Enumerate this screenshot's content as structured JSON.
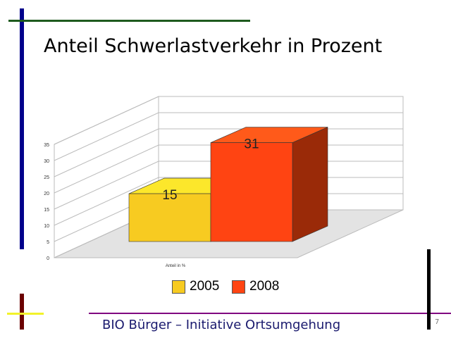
{
  "slide": {
    "title": "Anteil Schwerlastverkehr in Prozent",
    "footer": "BIO Bürger – Initiative Ortsumgehung",
    "page_number": "7"
  },
  "colors": {
    "s2005_front": "#f7cb21",
    "s2005_top": "#fce72b",
    "s2005_side": "#c89a10",
    "s2008_front": "#ff4412",
    "s2008_top": "#ff5a1a",
    "s2008_side": "#9a2a08"
  },
  "chart_data": {
    "type": "bar",
    "title": "",
    "categories": [
      "Anteil in %"
    ],
    "xlabel": "Anteil in %",
    "ylabel": "",
    "ylim": [
      0,
      35
    ],
    "yticks": [
      "0",
      "5",
      "10",
      "15",
      "20",
      "25",
      "30",
      "35"
    ],
    "grid": true,
    "legend_position": "bottom",
    "series": [
      {
        "name": "2005",
        "values": [
          15
        ],
        "label": "15"
      },
      {
        "name": "2008",
        "values": [
          31
        ],
        "label": "31"
      }
    ]
  }
}
